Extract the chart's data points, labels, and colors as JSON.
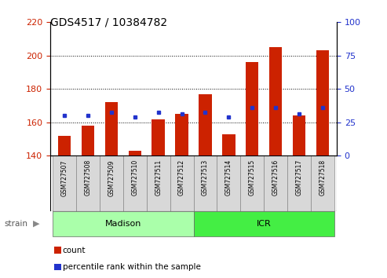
{
  "title": "GDS4517 / 10384782",
  "samples": [
    "GSM727507",
    "GSM727508",
    "GSM727509",
    "GSM727510",
    "GSM727511",
    "GSM727512",
    "GSM727513",
    "GSM727514",
    "GSM727515",
    "GSM727516",
    "GSM727517",
    "GSM727518"
  ],
  "count_values": [
    152,
    158,
    172,
    143,
    162,
    165,
    177,
    153,
    196,
    205,
    164,
    203
  ],
  "percentile_values": [
    164,
    164,
    166,
    163,
    166,
    165,
    166,
    163,
    169,
    169,
    165,
    169
  ],
  "baseline": 140,
  "ylim_left": [
    140,
    220
  ],
  "ylim_right": [
    0,
    100
  ],
  "yticks_left": [
    140,
    160,
    180,
    200,
    220
  ],
  "yticks_right": [
    0,
    25,
    50,
    75,
    100
  ],
  "bar_color": "#cc2200",
  "percentile_color": "#2233cc",
  "strain_groups": [
    {
      "label": "Madison",
      "start": 0,
      "end": 6,
      "color": "#aaffaa"
    },
    {
      "label": "ICR",
      "start": 6,
      "end": 12,
      "color": "#44ee44"
    }
  ],
  "strain_label": "strain",
  "legend_count": "count",
  "legend_percentile": "percentile rank within the sample",
  "title_fontsize": 10,
  "tick_fontsize": 8,
  "bar_width": 0.55
}
